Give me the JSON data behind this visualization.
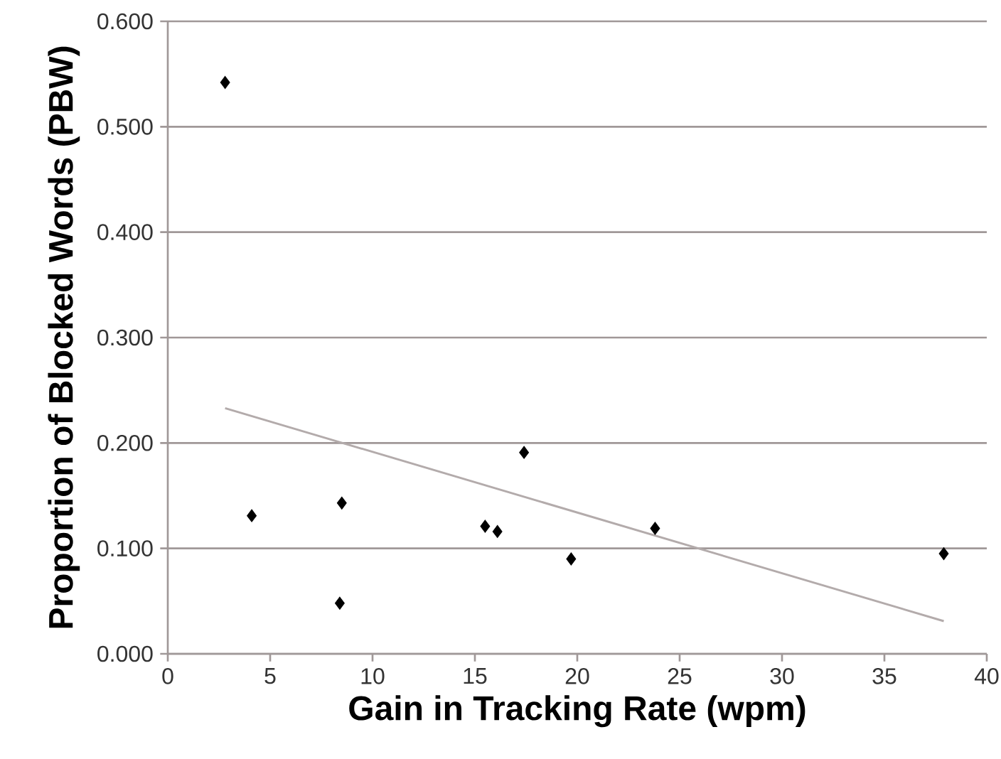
{
  "chart_data": {
    "type": "scatter",
    "xlabel": "Gain in Tracking Rate (wpm)",
    "ylabel": "Proportion of Blocked Words (PBW)",
    "xlim": [
      0,
      40
    ],
    "xticks": [
      0,
      5,
      10,
      15,
      20,
      25,
      30,
      35,
      40
    ],
    "ylim": [
      0,
      0.6
    ],
    "yticks": [
      {
        "value": 0,
        "label": "0.000"
      },
      {
        "value": 0.1,
        "label": "0.100"
      },
      {
        "value": 0.2,
        "label": "0.200"
      },
      {
        "value": 0.3,
        "label": "0.300"
      },
      {
        "value": 0.4,
        "label": "0.400"
      },
      {
        "value": 0.5,
        "label": "0.500"
      },
      {
        "value": 0.6,
        "label": "0.600"
      }
    ],
    "grid": "y",
    "series": [
      {
        "type": "scatter",
        "color": "#000000",
        "marker": "diamond",
        "x": [
          2.8,
          4.1,
          8.5,
          8.4,
          15.5,
          16.1,
          17.4,
          19.7,
          23.8,
          37.9
        ],
        "values": [
          0.542,
          0.131,
          0.143,
          0.048,
          0.121,
          0.116,
          0.191,
          0.09,
          0.119,
          0.095
        ]
      },
      {
        "type": "line",
        "color": "#b3abab",
        "marker": "none",
        "x": [
          2.8,
          37.9
        ],
        "values": [
          0.233,
          0.031
        ]
      }
    ]
  }
}
